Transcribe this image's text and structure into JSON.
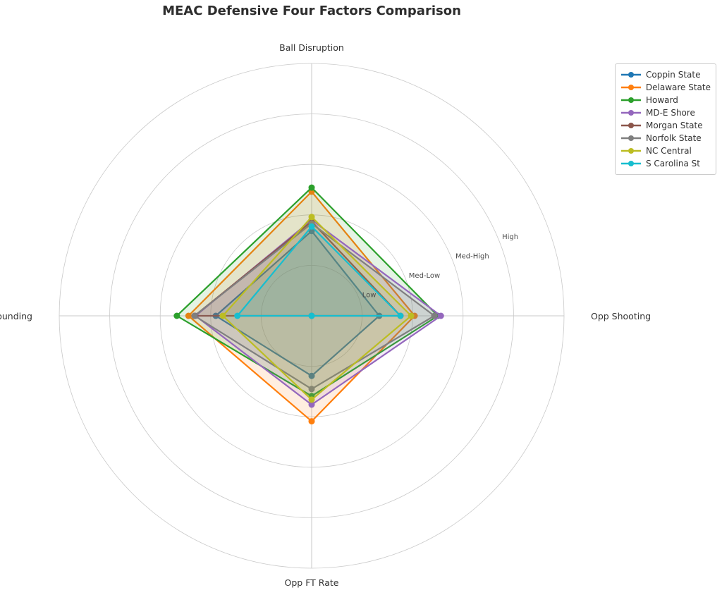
{
  "title": "MEAC Defensive Four Factors Comparison",
  "chart_data": {
    "type": "radar",
    "title": "MEAC Defensive Four Factors Comparison",
    "categories": [
      "Ball Disruption",
      "Opp Shooting",
      "Opp FT Rate",
      "Def Rebounding"
    ],
    "radial_axis": {
      "min": 0,
      "max": 5,
      "tick_values": [
        1,
        2,
        3,
        4
      ],
      "tick_labels": [
        "Low",
        "Med-Low",
        "Med-High",
        "High"
      ],
      "tick_label_angle_deg": 22.5,
      "grid": true
    },
    "series": [
      {
        "name": "Coppin State",
        "color": "#1f77b4",
        "values": [
          1.68,
          1.34,
          1.19,
          1.9
        ]
      },
      {
        "name": "Delaware State",
        "color": "#ff7f0e",
        "values": [
          2.46,
          2.04,
          2.09,
          2.44
        ]
      },
      {
        "name": "Howard",
        "color": "#2ca02c",
        "values": [
          2.54,
          2.5,
          1.59,
          2.67
        ]
      },
      {
        "name": "MD-E Shore",
        "color": "#9467bd",
        "values": [
          1.9,
          2.56,
          1.76,
          2.3
        ]
      },
      {
        "name": "Morgan State",
        "color": "#8c564b",
        "values": [
          1.87,
          1.76,
          0.0,
          2.32
        ]
      },
      {
        "name": "Norfolk State",
        "color": "#7f7f7f",
        "values": [
          1.83,
          2.43,
          1.45,
          2.32
        ]
      },
      {
        "name": "NC Central",
        "color": "#bcbd22",
        "values": [
          1.96,
          1.97,
          1.66,
          1.76
        ]
      },
      {
        "name": "S Carolina St",
        "color": "#17becf",
        "values": [
          1.77,
          1.76,
          0.0,
          1.47
        ]
      }
    ],
    "legend_position": "upper right",
    "fill_alpha": 0.13,
    "line_width": 2.2,
    "marker": "o"
  },
  "styles": {
    "background": "#ffffff",
    "grid_color": "#c9c9c9",
    "title_color": "#2d2d2d",
    "axis_label_color": "#333333",
    "tick_label_color": "#4a4a4a",
    "legend_border_color": "#cccccc",
    "legend_text_color": "#333333"
  }
}
